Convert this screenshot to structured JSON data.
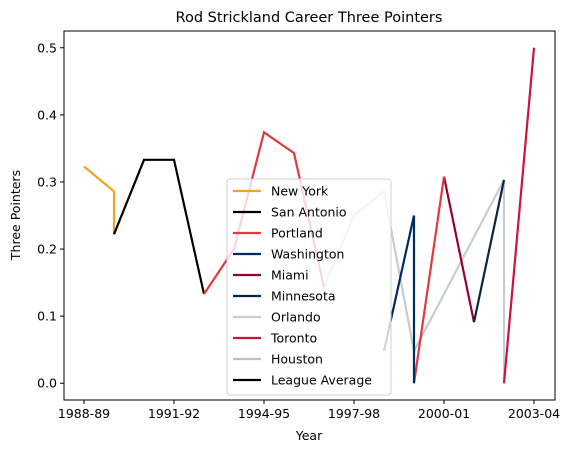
{
  "chart_data": {
    "type": "line",
    "title": "Rod Strickland Career Three Pointers",
    "xlabel": "Year",
    "ylabel": "Three Pointers",
    "x_ticks": [
      "1988-89",
      "1991-92",
      "1994-95",
      "1997-98",
      "2000-01",
      "2003-04"
    ],
    "y_ticks": [
      "0.0",
      "0.1",
      "0.2",
      "0.3",
      "0.4",
      "0.5"
    ],
    "ylim": [
      -0.025,
      0.525
    ],
    "grid": false,
    "legend_position": "lower center",
    "series": [
      {
        "name": "New York",
        "color": "#f5a123",
        "points": [
          [
            0,
            0.323
          ],
          [
            1,
            0.286
          ],
          [
            1,
            0.222
          ]
        ]
      },
      {
        "name": "San Antonio",
        "color": "#000000",
        "points": [
          [
            1,
            0.222
          ],
          [
            2,
            0.333
          ],
          [
            3,
            0.333
          ],
          [
            4,
            0.133
          ]
        ]
      },
      {
        "name": "Portland",
        "color": "#e03a3e",
        "points": [
          [
            4,
            0.133
          ],
          [
            5,
            0.2
          ],
          [
            6,
            0.374
          ],
          [
            7,
            0.343
          ],
          [
            8,
            0.143
          ]
        ]
      },
      {
        "name": "Washington",
        "color": "#002b5c",
        "points": [
          [
            10,
            0.048
          ],
          [
            11,
            0.25
          ]
        ]
      },
      {
        "name": "Miami",
        "color": "#98002e",
        "points": [
          [
            12,
            0.308
          ],
          [
            13,
            0.091
          ]
        ]
      },
      {
        "name": "Minnesota",
        "color": "#0c2340",
        "points": [
          [
            13,
            0.091
          ],
          [
            14,
            0.303
          ]
        ]
      },
      {
        "name": "Orlando",
        "color": "#c4ced4",
        "points": [
          [
            8,
            0.143
          ],
          [
            9,
            0.25
          ],
          [
            10,
            0.286
          ],
          [
            11,
            0.048
          ],
          [
            14,
            0.303
          ],
          [
            14,
            0.0
          ]
        ]
      },
      {
        "name": "Toronto",
        "color": "#ce1141",
        "points": [
          [
            14,
            0.0
          ],
          [
            15,
            0.5
          ]
        ]
      },
      {
        "name": "Houston",
        "color": "#bec0c2",
        "points": []
      },
      {
        "name": "League Average",
        "color": "#000000",
        "points": []
      }
    ],
    "extra_segments": [
      {
        "series": "Portland",
        "points": [
          [
            11,
            0.0
          ],
          [
            12,
            0.308
          ]
        ]
      },
      {
        "series": "Washington",
        "points": [
          [
            11,
            0.25
          ],
          [
            11,
            0.0
          ]
        ]
      }
    ]
  }
}
